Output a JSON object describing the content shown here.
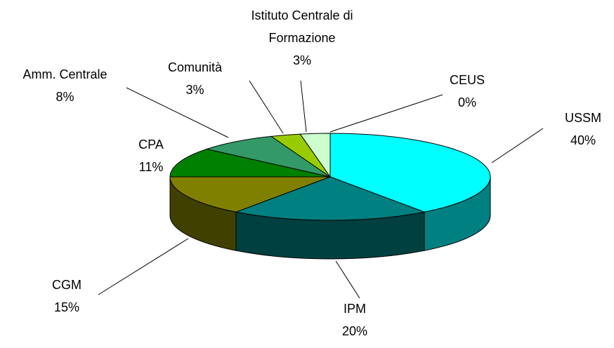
{
  "chart_data": {
    "type": "pie3d",
    "categories": [
      "USSM",
      "IPM",
      "CGM",
      "CPA",
      "Amm. Centrale",
      "Comunità",
      "Istituto Centrale di Formazione",
      "CEUS"
    ],
    "values": [
      40,
      20,
      15,
      11,
      8,
      3,
      3,
      0
    ],
    "value_labels": [
      "40%",
      "20%",
      "15%",
      "11%",
      "8%",
      "3%",
      "3%",
      "0%"
    ],
    "colors": [
      "#00ffff",
      "#008080",
      "#808000",
      "#008000",
      "#339966",
      "#99cc00",
      "#ccffcc",
      "#003300"
    ]
  }
}
